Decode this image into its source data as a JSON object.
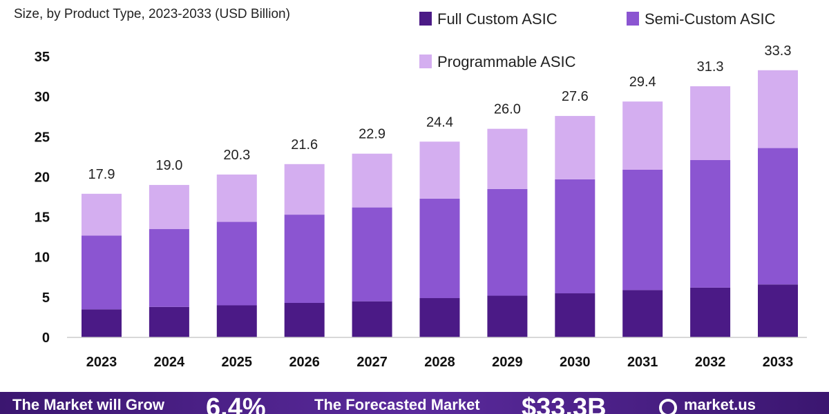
{
  "chart_data": {
    "type": "bar",
    "stacked": true,
    "subtitle": "Size, by Product Type, 2023-2033 (USD Billion)",
    "categories": [
      "2023",
      "2024",
      "2025",
      "2026",
      "2027",
      "2028",
      "2029",
      "2030",
      "2031",
      "2032",
      "2033"
    ],
    "series": [
      {
        "name": "Full Custom ASIC",
        "color": "#4b1a86",
        "values": [
          3.5,
          3.8,
          4.0,
          4.3,
          4.5,
          4.9,
          5.2,
          5.5,
          5.9,
          6.2,
          6.6
        ]
      },
      {
        "name": "Semi-Custom ASIC",
        "color": "#8b55d1",
        "values": [
          9.2,
          9.7,
          10.4,
          11.0,
          11.7,
          12.4,
          13.3,
          14.2,
          15.0,
          15.9,
          17.0
        ]
      },
      {
        "name": "Programmable ASIC",
        "color": "#d4aef0",
        "values": [
          5.2,
          5.5,
          5.9,
          6.3,
          6.7,
          7.1,
          7.5,
          7.9,
          8.5,
          9.2,
          9.7
        ]
      }
    ],
    "totals": [
      "17.9",
      "19.0",
      "20.3",
      "21.6",
      "22.9",
      "24.4",
      "26.0",
      "27.6",
      "29.4",
      "31.3",
      "33.3"
    ],
    "yticks": [
      0,
      5,
      10,
      15,
      20,
      25,
      30,
      35
    ],
    "ylim": [
      0,
      35
    ],
    "grid": false,
    "legend_position": "top-right"
  },
  "footer": {
    "grow_text": "The Market will Grow",
    "cagr_value": "6.4%",
    "forecast_text": "The Forecasted Market",
    "forecast_value": "$33.3B",
    "brand": "market.us"
  }
}
